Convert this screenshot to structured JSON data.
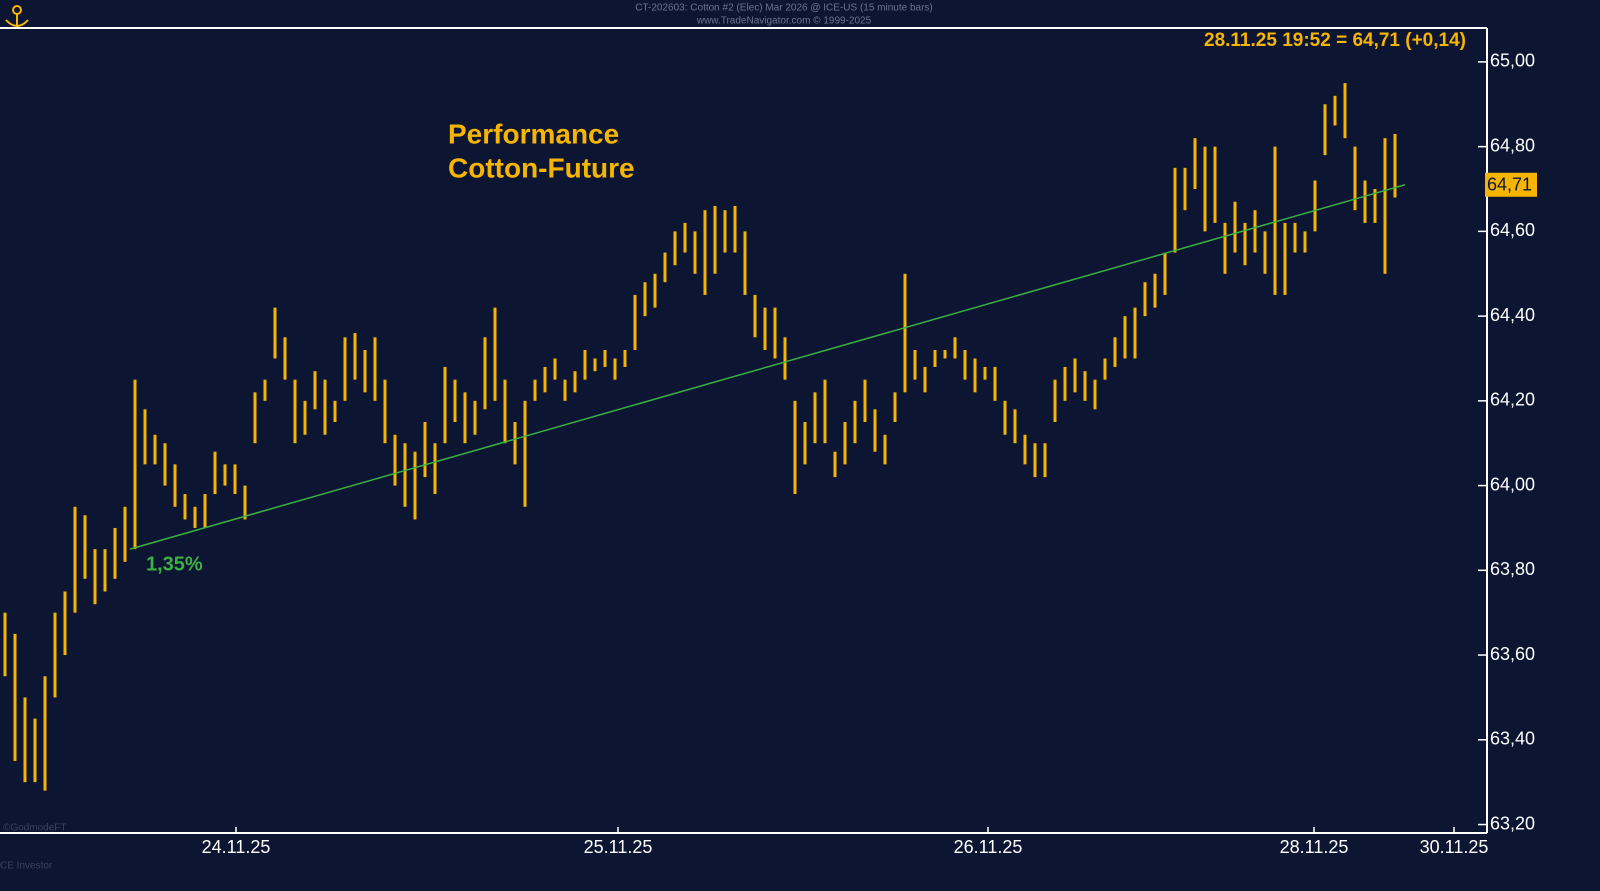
{
  "chart_data": {
    "type": "ohlc",
    "title": "CT-202603:  Cotton #2 (Elec) Mar 2026 @ ICE-US  (15 minute bars)",
    "subtitle": "www.TradeNavigator.com © 1999-2025",
    "annotation": [
      "Performance",
      "Cotton-Future"
    ],
    "last_price_text": "28.11.25 19:52 = 64,71 (+0,14)",
    "last_price": {
      "value": 64.71,
      "label": "64,71"
    },
    "watermark": "©GodmodeFT",
    "footer": "CE Investor",
    "color": "#f7b500",
    "xlim": [
      -0.5,
      148
    ],
    "ylim": [
      63.18,
      65.08
    ],
    "xticks": [
      {
        "value": 23.1,
        "label": "24.11.25"
      },
      {
        "value": 61.3,
        "label": "25.11.25"
      },
      {
        "value": 98.3,
        "label": "26.11.25"
      },
      {
        "value": 130.9,
        "label": "28.11.25"
      },
      {
        "value": 144.9,
        "label": "30.11.25"
      }
    ],
    "yticks": [
      {
        "value": 63.2,
        "label": "63,20"
      },
      {
        "value": 63.4,
        "label": "63,40"
      },
      {
        "value": 63.6,
        "label": "63,60"
      },
      {
        "value": 63.8,
        "label": "63,80"
      },
      {
        "value": 64.0,
        "label": "64,00"
      },
      {
        "value": 64.2,
        "label": "64,20"
      },
      {
        "value": 64.4,
        "label": "64,40"
      },
      {
        "value": 64.6,
        "label": "64,60"
      },
      {
        "value": 64.8,
        "label": "64,80"
      },
      {
        "value": 65.0,
        "label": "65,00"
      }
    ],
    "high": [
      63.7,
      63.65,
      63.5,
      63.45,
      63.55,
      63.7,
      63.75,
      63.95,
      63.93,
      63.85,
      63.85,
      63.9,
      63.95,
      64.25,
      64.18,
      64.12,
      64.1,
      64.05,
      63.98,
      63.95,
      63.98,
      64.08,
      64.05,
      64.05,
      64.0,
      64.22,
      64.25,
      64.42,
      64.35,
      64.25,
      64.2,
      64.27,
      64.25,
      64.2,
      64.35,
      64.36,
      64.32,
      64.35,
      64.25,
      64.12,
      64.1,
      64.08,
      64.15,
      64.1,
      64.28,
      64.25,
      64.22,
      64.2,
      64.35,
      64.42,
      64.25,
      64.15,
      64.2,
      64.25,
      64.28,
      64.3,
      64.25,
      64.27,
      64.32,
      64.3,
      64.32,
      64.3,
      64.32,
      64.45,
      64.48,
      64.5,
      64.55,
      64.6,
      64.62,
      64.6,
      64.65,
      64.66,
      64.65,
      64.66,
      64.6,
      64.45,
      64.42,
      64.42,
      64.35,
      64.2,
      64.15,
      64.22,
      64.25,
      64.08,
      64.15,
      64.2,
      64.25,
      64.18,
      64.12,
      64.22,
      64.5,
      64.32,
      64.28,
      64.32,
      64.32,
      64.35,
      64.32,
      64.3,
      64.28,
      64.28,
      64.2,
      64.18,
      64.12,
      64.1,
      64.1,
      64.25,
      64.28,
      64.3,
      64.27,
      64.25,
      64.3,
      64.35,
      64.4,
      64.42,
      64.48,
      64.5,
      64.55,
      64.75,
      64.75,
      64.82,
      64.8,
      64.8,
      64.62,
      64.67,
      64.62,
      64.65,
      64.6,
      64.8,
      64.62,
      64.62,
      64.6,
      64.72,
      64.9,
      64.92,
      64.95,
      64.8,
      64.72,
      64.7,
      64.82,
      64.83
    ],
    "low": [
      63.55,
      63.35,
      63.3,
      63.3,
      63.28,
      63.5,
      63.6,
      63.7,
      63.78,
      63.72,
      63.75,
      63.78,
      63.82,
      63.85,
      64.05,
      64.05,
      64.0,
      63.95,
      63.92,
      63.9,
      63.9,
      63.98,
      64.0,
      63.98,
      63.92,
      64.1,
      64.2,
      64.3,
      64.25,
      64.1,
      64.12,
      64.18,
      64.12,
      64.15,
      64.2,
      64.25,
      64.22,
      64.2,
      64.1,
      64.0,
      63.95,
      63.92,
      64.02,
      63.98,
      64.1,
      64.15,
      64.1,
      64.12,
      64.18,
      64.2,
      64.1,
      64.05,
      63.95,
      64.2,
      64.22,
      64.25,
      64.2,
      64.22,
      64.25,
      64.27,
      64.28,
      64.25,
      64.28,
      64.32,
      64.4,
      64.42,
      64.48,
      64.52,
      64.55,
      64.5,
      64.45,
      64.5,
      64.55,
      64.55,
      64.45,
      64.35,
      64.32,
      64.3,
      64.25,
      63.98,
      64.05,
      64.1,
      64.1,
      64.02,
      64.05,
      64.1,
      64.15,
      64.08,
      64.05,
      64.15,
      64.22,
      64.25,
      64.22,
      64.28,
      64.3,
      64.3,
      64.25,
      64.22,
      64.25,
      64.2,
      64.12,
      64.1,
      64.05,
      64.02,
      64.02,
      64.15,
      64.2,
      64.22,
      64.2,
      64.18,
      64.25,
      64.28,
      64.3,
      64.3,
      64.4,
      64.42,
      64.45,
      64.55,
      64.65,
      64.7,
      64.6,
      64.62,
      64.5,
      64.55,
      64.52,
      64.55,
      64.5,
      64.45,
      64.45,
      64.55,
      64.55,
      64.6,
      64.78,
      64.85,
      64.82,
      64.65,
      64.62,
      64.62,
      64.5,
      64.68
    ],
    "trendline": {
      "x": [
        12.5,
        140
      ],
      "y": [
        63.85,
        64.71
      ],
      "label": "1,35%",
      "color": "#3cb043"
    }
  }
}
